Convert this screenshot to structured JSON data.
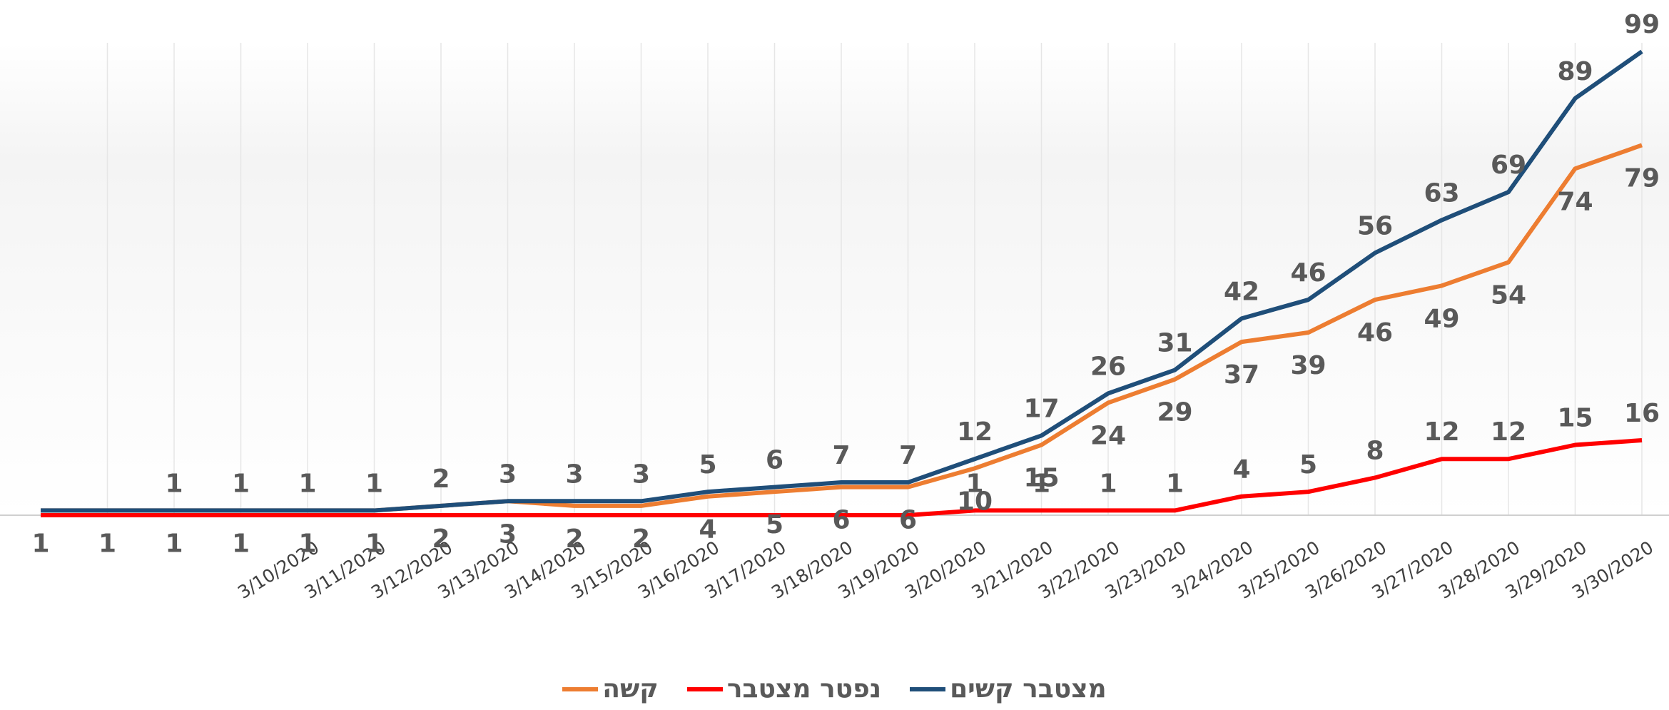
{
  "chart_data": {
    "type": "line",
    "categories": [
      null,
      null,
      null,
      null,
      "3/10/2020",
      "3/11/2020",
      "3/12/2020",
      "3/13/2020",
      "3/14/2020",
      "3/15/2020",
      "3/16/2020",
      "3/17/2020",
      "3/18/2020",
      "3/19/2020",
      "3/20/2020",
      "3/21/2020",
      "3/22/2020",
      "3/23/2020",
      "3/24/2020",
      "3/25/2020",
      "3/26/2020",
      "3/27/2020",
      "3/28/2020",
      "3/29/2020",
      "3/30/2020"
    ],
    "series": [
      {
        "name": "מצטבר קשים",
        "color": "#1f4e79",
        "label_side": "above",
        "values": [
          1,
          1,
          1,
          1,
          1,
          1,
          2,
          3,
          3,
          3,
          5,
          6,
          7,
          7,
          12,
          17,
          26,
          31,
          42,
          46,
          56,
          63,
          69,
          89,
          99
        ],
        "value_labels": [
          null,
          null,
          "1",
          "1",
          "1",
          "1",
          "2",
          "3",
          "3",
          "3",
          "5",
          "6",
          "7",
          "7",
          "12",
          "17",
          "26",
          "31",
          "42",
          "46",
          "56",
          "63",
          "69",
          "89",
          "99"
        ]
      },
      {
        "name": "נפטר מצטבר",
        "color": "#ff0000",
        "label_side": "above",
        "values": [
          0,
          0,
          0,
          0,
          0,
          0,
          0,
          0,
          0,
          0,
          0,
          0,
          0,
          0,
          1,
          1,
          1,
          1,
          4,
          5,
          8,
          12,
          12,
          15,
          16
        ],
        "value_labels": [
          null,
          null,
          null,
          null,
          null,
          null,
          null,
          null,
          null,
          null,
          null,
          null,
          null,
          null,
          "1",
          "1",
          "1",
          "1",
          "4",
          "5",
          "8",
          "12",
          "12",
          "15",
          "16"
        ]
      },
      {
        "name": "קשה",
        "color": "#ed7d31",
        "label_side": "below",
        "values": [
          1,
          1,
          1,
          1,
          1,
          1,
          2,
          3,
          2,
          2,
          4,
          5,
          6,
          6,
          10,
          15,
          24,
          29,
          37,
          39,
          46,
          49,
          54,
          74,
          79
        ],
        "value_labels": [
          "1",
          "1",
          "1",
          "1",
          "1",
          "1",
          "2",
          "3",
          "2",
          "2",
          "4",
          "5",
          "6",
          "6",
          "10",
          "15",
          "24",
          "29",
          "37",
          "39",
          "46",
          "49",
          "54",
          "74",
          "79"
        ]
      }
    ],
    "ylim": [
      0,
      110
    ],
    "grid": true
  }
}
